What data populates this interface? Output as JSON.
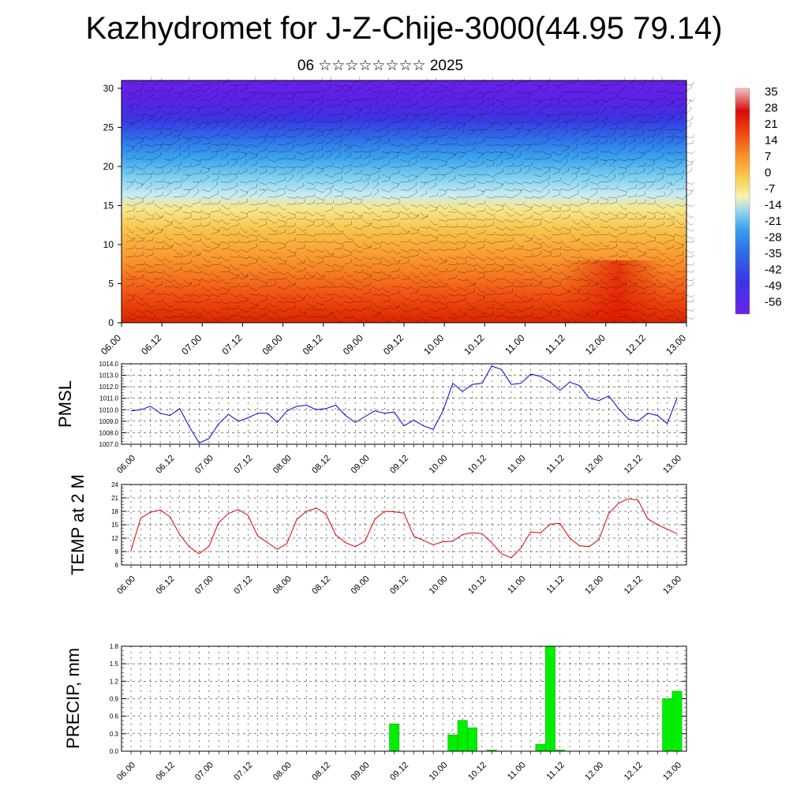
{
  "title": "Kazhydromet for J-Z-Chije-3000(44.95 79.14)",
  "subtitle": "06 ☆☆☆☆☆☆☆☆ 2025",
  "chart_data": [
    {
      "type": "heatmap",
      "name": "temperature-wind cross-section",
      "x_ticks": [
        "06.00",
        "06.12",
        "07.00",
        "07.12",
        "08.00",
        "08.12",
        "09.00",
        "09.12",
        "10.00",
        "10.12",
        "11.00",
        "11.12",
        "12.00",
        "12.12",
        "13.00"
      ],
      "y_ticks": [
        0,
        5,
        10,
        15,
        20,
        25,
        30
      ],
      "ylim": [
        0,
        31
      ],
      "colorbar_labels": [
        "35",
        "28",
        "21",
        "14",
        "7",
        "0",
        "-7",
        "-14",
        "-21",
        "-28",
        "-35",
        "-42",
        "-49",
        "-56"
      ],
      "colors": {
        "warm": "#d92500",
        "mid": "#f7e27a",
        "cool": "#9fd8ef",
        "cold": "#4a22e0",
        "top": "#6a22e8"
      },
      "overlay": "wind barbs"
    },
    {
      "type": "line",
      "ylabel": "PMSL",
      "ylim": [
        1007,
        1014
      ],
      "y_ticks": [
        "1007.0",
        "1008.0",
        "1009.0",
        "1010.0",
        "1011.0",
        "1012.0",
        "1013.0",
        "1014.0"
      ],
      "x_ticks": [
        "06.00",
        "06.12",
        "07.00",
        "07.12",
        "08.00",
        "08.12",
        "09.00",
        "09.12",
        "10.00",
        "10.12",
        "11.00",
        "11.12",
        "12.00",
        "12.12",
        "13.00"
      ],
      "color": "#0000dd",
      "values": [
        1009.9,
        1010.0,
        1010.3,
        1009.7,
        1009.5,
        1010.1,
        1008.5,
        1007.1,
        1007.5,
        1008.8,
        1009.6,
        1009.0,
        1009.3,
        1009.7,
        1009.7,
        1008.9,
        1009.9,
        1010.3,
        1010.4,
        1010.0,
        1010.1,
        1010.4,
        1009.5,
        1008.9,
        1009.4,
        1009.9,
        1009.7,
        1009.8,
        1008.6,
        1009.1,
        1008.6,
        1008.3,
        1009.9,
        1012.3,
        1011.6,
        1012.2,
        1012.3,
        1013.8,
        1013.5,
        1012.2,
        1012.3,
        1013.1,
        1012.9,
        1012.4,
        1011.7,
        1012.4,
        1012.1,
        1011.0,
        1010.8,
        1011.2,
        1010.1,
        1009.2,
        1009.0,
        1009.7,
        1009.5,
        1008.8,
        1011.0
      ]
    },
    {
      "type": "line",
      "ylabel": "TEMP at 2 M",
      "ylim": [
        6,
        24
      ],
      "y_ticks": [
        "6",
        "9",
        "12",
        "15",
        "18",
        "21",
        "24"
      ],
      "x_ticks": [
        "06.00",
        "06.12",
        "07.00",
        "07.12",
        "08.00",
        "08.12",
        "09.00",
        "09.12",
        "10.00",
        "10.12",
        "11.00",
        "11.12",
        "12.00",
        "12.12",
        "13.00"
      ],
      "color": "#dd0000",
      "values": [
        9.2,
        16.5,
        17.8,
        18.3,
        16.8,
        12.8,
        10.0,
        8.5,
        10.2,
        15.5,
        17.5,
        18.4,
        17.1,
        12.5,
        11.0,
        9.5,
        10.8,
        16.2,
        18.0,
        18.7,
        17.4,
        12.7,
        11.0,
        10.1,
        11.3,
        16.2,
        18.0,
        17.9,
        17.6,
        12.4,
        11.5,
        10.5,
        11.2,
        11.3,
        12.8,
        13.2,
        13.0,
        11.0,
        8.5,
        7.6,
        9.8,
        13.4,
        13.2,
        15.1,
        15.3,
        12.0,
        10.3,
        10.1,
        11.7,
        17.5,
        19.8,
        20.8,
        20.5,
        16.3,
        15.0,
        14.0,
        13.0
      ]
    },
    {
      "type": "bar",
      "ylabel": "PRECIP, mm",
      "ylim": [
        0,
        1.8
      ],
      "y_ticks": [
        "0.0",
        "0.3",
        "0.6",
        "0.9",
        "1.2",
        "1.5",
        "1.8"
      ],
      "x_ticks": [
        "06.00",
        "06.12",
        "07.00",
        "07.12",
        "08.00",
        "08.12",
        "09.00",
        "09.12",
        "10.00",
        "10.12",
        "11.00",
        "11.12",
        "12.00",
        "12.12",
        "13.00"
      ],
      "color": "#00ee00",
      "values": [
        0,
        0,
        0,
        0,
        0,
        0,
        0,
        0,
        0,
        0,
        0,
        0,
        0,
        0,
        0,
        0,
        0,
        0,
        0,
        0,
        0,
        0,
        0,
        0,
        0,
        0,
        0,
        0.47,
        0,
        0,
        0,
        0,
        0,
        0.28,
        0.53,
        0.4,
        0,
        0.02,
        0,
        0,
        0,
        0,
        0.12,
        1.8,
        0.02,
        0,
        0,
        0,
        0,
        0,
        0,
        0,
        0,
        0,
        0,
        0.9,
        1.03
      ]
    }
  ]
}
